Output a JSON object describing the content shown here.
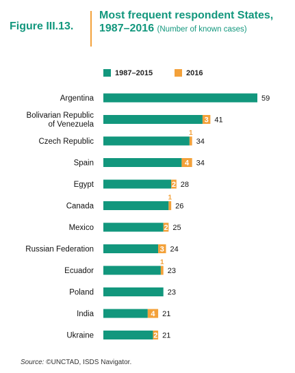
{
  "figure": {
    "label": "Figure III.13.",
    "title_main": "Most frequent respondent States, 1987–2016",
    "title_sub": "(Number of known cases)"
  },
  "source": {
    "prefix": "Source:",
    "text": "©UNCTAD, ISDS Navigator."
  },
  "colors": {
    "series_1987_2015": "#12977d",
    "series_2016": "#f3a13a",
    "title": "#12977d"
  },
  "chart_data": {
    "type": "bar",
    "orientation": "horizontal",
    "stacked": true,
    "categories": [
      "Argentina",
      "Bolivarian Republic of Venezuela",
      "Czech Republic",
      "Spain",
      "Egypt",
      "Canada",
      "Mexico",
      "Russian Federation",
      "Ecuador",
      "Poland",
      "India",
      "Ukraine"
    ],
    "category_lines": [
      [
        "Argentina"
      ],
      [
        "Bolivarian Republic",
        "of Venezuela"
      ],
      [
        "Czech Republic"
      ],
      [
        "Spain"
      ],
      [
        "Egypt"
      ],
      [
        "Canada"
      ],
      [
        "Mexico"
      ],
      [
        "Russian Federation"
      ],
      [
        "Ecuador"
      ],
      [
        "Poland"
      ],
      [
        "India"
      ],
      [
        "Ukraine"
      ]
    ],
    "series": [
      {
        "name": "1987–2015",
        "values": [
          59,
          38,
          33,
          30,
          26,
          25,
          23,
          21,
          22,
          23,
          17,
          19
        ]
      },
      {
        "name": "2016",
        "values": [
          0,
          3,
          1,
          4,
          2,
          1,
          2,
          3,
          1,
          0,
          4,
          2
        ]
      }
    ],
    "totals": [
      59,
      41,
      34,
      34,
      28,
      26,
      25,
      24,
      23,
      23,
      21,
      21
    ],
    "legend_position": "top",
    "grid": false,
    "xlim": [
      0,
      60
    ]
  }
}
